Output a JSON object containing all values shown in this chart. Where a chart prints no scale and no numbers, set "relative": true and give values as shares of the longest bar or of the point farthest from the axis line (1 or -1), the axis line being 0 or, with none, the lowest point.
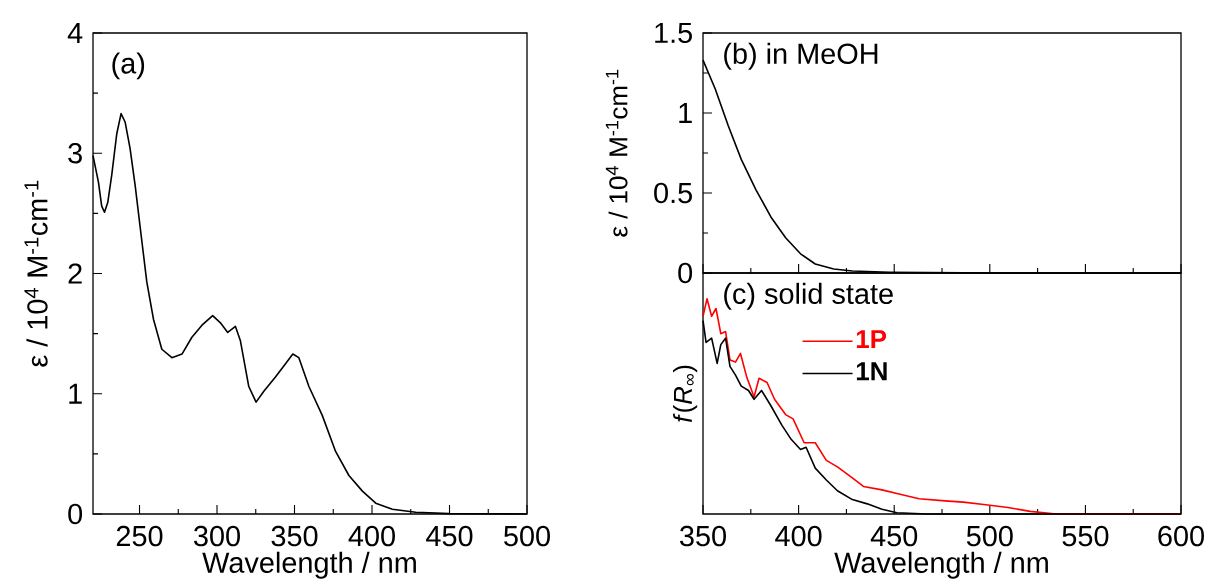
{
  "chart_data": [
    {
      "type": "line",
      "title": "(a)",
      "xlabel": "Wavelength / nm",
      "ylabel": "ε / 10$^{4}$ M$^{-1}$cm$^{-1}$",
      "xlim": [
        220,
        500
      ],
      "xticks": [
        250,
        300,
        350,
        400,
        450,
        500
      ],
      "ylim": [
        0,
        4
      ],
      "yticks": [
        0,
        1,
        2,
        3,
        4
      ],
      "grid": false,
      "legend": false,
      "series": [
        {
          "color": "#000000",
          "x": [
            220,
            223.5,
            225.6,
            227.4,
            229.5,
            232.1,
            235.3,
            238.1,
            240.7,
            243.9,
            247.2,
            251.5,
            254.7,
            259,
            264.4,
            270.9,
            277.4,
            283.8,
            290.3,
            297.2,
            302.2,
            306.9,
            311.9,
            315.1,
            320.5,
            325.2,
            330.2,
            337.7,
            344.2,
            348.9,
            352.8,
            359.3,
            367.9,
            376.5,
            385.1,
            393.8,
            402.4,
            413.1,
            428.2,
            449.8,
            500
          ],
          "values": [
            2.98,
            2.76,
            2.56,
            2.51,
            2.59,
            2.82,
            3.16,
            3.33,
            3.26,
            3.04,
            2.73,
            2.27,
            1.93,
            1.62,
            1.37,
            1.3,
            1.33,
            1.47,
            1.57,
            1.65,
            1.59,
            1.51,
            1.56,
            1.44,
            1.06,
            0.93,
            1.02,
            1.14,
            1.25,
            1.33,
            1.3,
            1.06,
            0.82,
            0.52,
            0.32,
            0.19,
            0.09,
            0.04,
            0.015,
            0.003,
            0
          ]
        }
      ]
    },
    {
      "type": "line",
      "title": "(b) in MeOH",
      "ylabel": "ε / 10$^{4}$ M$^{-1}$cm$^{-1}$",
      "xlim": [
        350,
        600
      ],
      "xticks": [
        {
          "value": 350,
          "label": null
        },
        {
          "value": 400,
          "label": null
        },
        {
          "value": 450,
          "label": null
        },
        {
          "value": 500,
          "label": null
        },
        {
          "value": 550,
          "label": null
        },
        {
          "value": 600,
          "label": null
        }
      ],
      "ylim": [
        0,
        1.5
      ],
      "yticks": [
        0,
        0.5,
        1,
        1.5
      ],
      "tick_labels": "y",
      "grid": false,
      "legend": false,
      "series": [
        {
          "color": "#000000",
          "x": [
            350,
            356.4,
            363.2,
            370,
            377.7,
            385.5,
            393.2,
            401,
            408.7,
            418.4,
            428.1,
            447.5,
            466.9,
            505.6,
            600
          ],
          "values": [
            1.33,
            1.15,
            0.92,
            0.71,
            0.52,
            0.35,
            0.22,
            0.12,
            0.056,
            0.025,
            0.012,
            0.005,
            0.002,
            0,
            0
          ]
        }
      ]
    },
    {
      "type": "line",
      "title": "(c) solid state",
      "xlabel": "Wavelength / nm",
      "ylabel": "*f*(*R*$_{∞}$)",
      "relative": true,
      "xlim": [
        350,
        600
      ],
      "xticks": [
        350,
        400,
        450,
        500,
        550,
        600
      ],
      "tick_labels": "x",
      "grid": false,
      "legend": "top left",
      "series": [
        {
          "name": "1P",
          "color": "#ff0000",
          "x": [
            350,
            352.1,
            354.5,
            356.8,
            359.3,
            361.8,
            364.1,
            367,
            369.6,
            372.9,
            376.7,
            379.3,
            383.5,
            387.4,
            393.2,
            397.1,
            402.9,
            408.7,
            414.5,
            420.3,
            428.1,
            433.9,
            443.6,
            451.4,
            463,
            476.6,
            486.2,
            497.9,
            509.5,
            521.1,
            534.7,
            600
          ],
          "values": [
            0.919,
            1.0,
            0.919,
            0.955,
            0.838,
            0.848,
            0.716,
            0.706,
            0.746,
            0.635,
            0.544,
            0.631,
            0.611,
            0.533,
            0.462,
            0.442,
            0.331,
            0.331,
            0.249,
            0.219,
            0.168,
            0.128,
            0.112,
            0.095,
            0.071,
            0.061,
            0.055,
            0.043,
            0.03,
            0.012,
            0,
            0
          ]
        },
        {
          "name": "1N",
          "color": "#000000",
          "x": [
            350,
            351.6,
            354.5,
            357.4,
            359.3,
            361.8,
            364.1,
            367,
            370,
            373.8,
            376.7,
            380.6,
            385.5,
            391.3,
            396.1,
            401,
            403.9,
            408.7,
            414.5,
            420.3,
            428.1,
            435.9,
            443.6,
            451.4,
            466.9,
            600
          ],
          "values": [
            0.899,
            0.797,
            0.817,
            0.7,
            0.787,
            0.817,
            0.686,
            0.645,
            0.594,
            0.574,
            0.533,
            0.574,
            0.503,
            0.412,
            0.347,
            0.3,
            0.31,
            0.213,
            0.158,
            0.108,
            0.067,
            0.047,
            0.022,
            0.006,
            0,
            0
          ]
        }
      ]
    }
  ]
}
